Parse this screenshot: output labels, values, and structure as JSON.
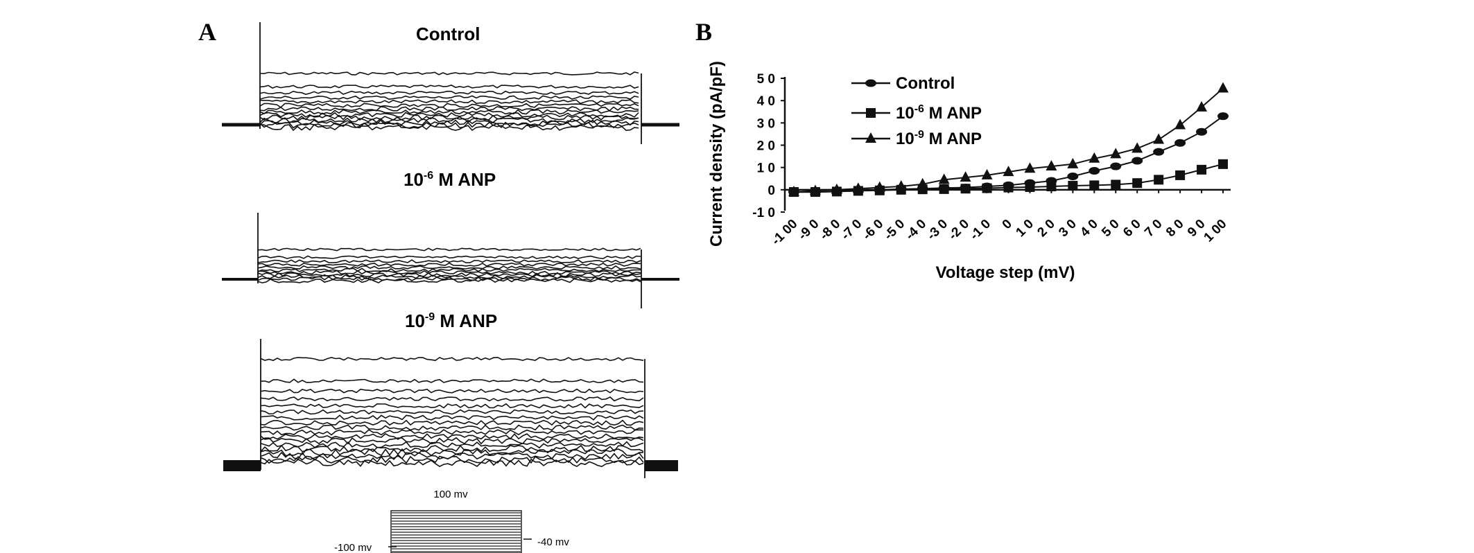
{
  "panels": {
    "a_label": "A",
    "b_label": "B"
  },
  "panel_a": {
    "traces": [
      {
        "title_prefix": "",
        "title_sup": "",
        "title_suffix": "Control"
      },
      {
        "title_prefix": "10",
        "title_sup": "-6",
        "title_suffix": " M ANP"
      },
      {
        "title_prefix": "10",
        "title_sup": "-9",
        "title_suffix": " M ANP"
      }
    ],
    "protocol": {
      "top_label": "100 mv",
      "left_label": "-100 mv",
      "right_label": "-40 mv"
    }
  },
  "chart_data": {
    "type": "line",
    "title": "",
    "xlabel": "Voltage step (mV)",
    "ylabel": "Current density (pA/pF)",
    "x": [
      -100,
      -90,
      -80,
      -70,
      -60,
      -50,
      -40,
      -30,
      -20,
      -10,
      0,
      10,
      20,
      30,
      40,
      50,
      60,
      70,
      80,
      90,
      100
    ],
    "x_tick_labels": [
      "-1 00",
      "-9 0",
      "-8 0",
      "-7 0",
      "-6 0",
      "-5 0",
      "-4 0",
      "-3 0",
      "-2 0",
      "-1 0",
      "0",
      "1 0",
      "2 0",
      "3 0",
      "4 0",
      "5 0",
      "6 0",
      "7 0",
      "8 0",
      "9 0",
      "1 00"
    ],
    "ylim": [
      -10,
      50
    ],
    "y_ticks": [
      -10,
      0,
      10,
      20,
      30,
      40,
      50
    ],
    "y_tick_labels": [
      "-1 0",
      "0",
      "1 0",
      "2 0",
      "3 0",
      "4 0",
      "5 0"
    ],
    "grid": false,
    "legend_position": "top-left",
    "series": [
      {
        "name": "Control",
        "marker": "circle",
        "values": [
          -1,
          -1,
          -0.8,
          -0.5,
          0,
          0.3,
          0.5,
          0.8,
          1,
          1.5,
          2,
          3,
          4,
          6,
          8.5,
          10.5,
          13,
          17,
          21,
          26,
          33
        ]
      },
      {
        "name_prefix": "10",
        "name_sup": "-6",
        "name_suffix": " M ANP",
        "marker": "square",
        "values": [
          -1,
          -1,
          -0.8,
          -0.5,
          -0.3,
          0,
          0.2,
          0.3,
          0.5,
          0.7,
          1,
          1.2,
          1.5,
          1.8,
          2,
          2.3,
          3,
          4.5,
          6.5,
          9,
          11.5
        ]
      },
      {
        "name_prefix": "10",
        "name_sup": "-9",
        "name_suffix": " M ANP",
        "marker": "triangle",
        "values": [
          -1,
          -0.5,
          0,
          0.5,
          1,
          1.5,
          2.5,
          4.5,
          5.5,
          6.5,
          8,
          9.5,
          10.5,
          11.5,
          14,
          16,
          18.5,
          22.5,
          29,
          37,
          45.5
        ]
      }
    ]
  }
}
